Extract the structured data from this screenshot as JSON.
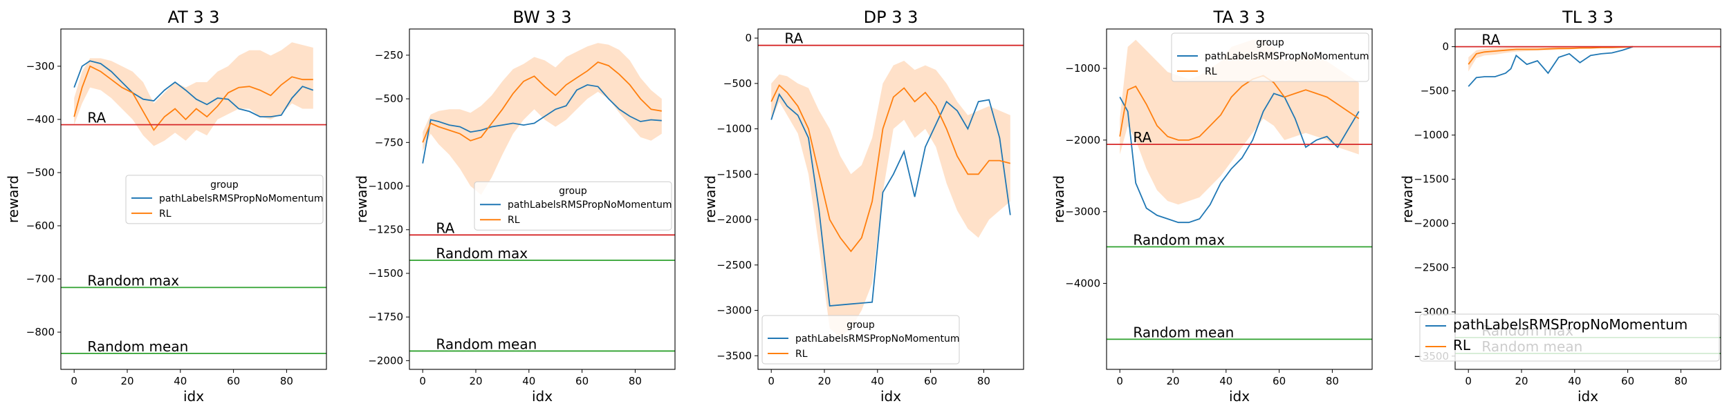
{
  "colors": {
    "blue": "#1f77b4",
    "orange": "#ff7f0e",
    "band": "#ffdcbf",
    "red": "#d62728",
    "green": "#2ca02c",
    "axis": "#000000"
  },
  "legend": {
    "title": "group",
    "entries": [
      "pathLabelsRMSPropNoMomentum",
      "RL"
    ]
  },
  "chart_data": [
    {
      "type": "line",
      "title": "AT 3 3",
      "xlabel": "idx",
      "ylabel": "reward",
      "xlim": [
        -5,
        95
      ],
      "ylim": [
        -870,
        -230
      ],
      "xticks": [
        0,
        20,
        40,
        60,
        80
      ],
      "yticks": [
        -800,
        -700,
        -600,
        -500,
        -400,
        -300
      ],
      "legend_placement": "center-right",
      "series": [
        {
          "name": "pathLabelsRMSPropNoMomentum",
          "color": "blue",
          "x": [
            0,
            3,
            6,
            10,
            14,
            18,
            22,
            26,
            30,
            34,
            38,
            42,
            46,
            50,
            54,
            58,
            62,
            66,
            70,
            74,
            78,
            82,
            86,
            90
          ],
          "y": [
            -340,
            -300,
            -290,
            -295,
            -310,
            -330,
            -350,
            -362,
            -365,
            -345,
            -330,
            -345,
            -362,
            -372,
            -360,
            -362,
            -380,
            -385,
            -395,
            -395,
            -392,
            -360,
            -338,
            -345
          ]
        },
        {
          "name": "RL",
          "color": "orange",
          "x": [
            0,
            3,
            6,
            10,
            14,
            18,
            22,
            26,
            30,
            34,
            38,
            42,
            46,
            50,
            54,
            58,
            62,
            66,
            70,
            74,
            78,
            82,
            86,
            90
          ],
          "y": [
            -395,
            -340,
            -300,
            -310,
            -325,
            -340,
            -350,
            -385,
            -420,
            -395,
            -380,
            -400,
            -380,
            -395,
            -375,
            -350,
            -340,
            -338,
            -345,
            -355,
            -335,
            -320,
            -325,
            -325
          ],
          "band_low": [
            -410,
            -370,
            -340,
            -345,
            -360,
            -380,
            -400,
            -430,
            -450,
            -440,
            -425,
            -440,
            -420,
            -430,
            -400,
            -390,
            -380,
            -380,
            -395,
            -400,
            -390,
            -370,
            -380,
            -380
          ],
          "band_high": [
            -360,
            -310,
            -285,
            -285,
            -290,
            -300,
            -310,
            -330,
            -370,
            -350,
            -330,
            -340,
            -330,
            -330,
            -310,
            -300,
            -280,
            -270,
            -270,
            -280,
            -270,
            -255,
            -260,
            -265
          ]
        }
      ],
      "hlines": [
        {
          "label": "RA",
          "y": -410,
          "color": "red"
        },
        {
          "label": "Random max",
          "y": -716,
          "color": "green"
        },
        {
          "label": "Random mean",
          "y": -840,
          "color": "green"
        }
      ]
    },
    {
      "type": "line",
      "title": "BW 3 3",
      "xlabel": "idx",
      "ylabel": "reward",
      "xlim": [
        -5,
        95
      ],
      "ylim": [
        -2050,
        -100
      ],
      "xticks": [
        0,
        20,
        40,
        60,
        80
      ],
      "yticks": [
        -2000,
        -1750,
        -1500,
        -1250,
        -1000,
        -750,
        -500,
        -250
      ],
      "legend_placement": "center-right",
      "series": [
        {
          "name": "pathLabelsRMSPropNoMomentum",
          "color": "blue",
          "x": [
            0,
            3,
            6,
            10,
            14,
            18,
            22,
            26,
            30,
            34,
            38,
            42,
            46,
            50,
            54,
            58,
            62,
            66,
            70,
            74,
            78,
            82,
            86,
            90
          ],
          "y": [
            -870,
            -620,
            -630,
            -650,
            -660,
            -690,
            -680,
            -660,
            -650,
            -640,
            -650,
            -640,
            -600,
            -560,
            -540,
            -450,
            -420,
            -430,
            -500,
            -560,
            -600,
            -630,
            -620,
            -625
          ]
        },
        {
          "name": "RL",
          "color": "orange",
          "x": [
            0,
            3,
            6,
            10,
            14,
            18,
            22,
            26,
            30,
            34,
            38,
            42,
            46,
            50,
            54,
            58,
            62,
            66,
            70,
            74,
            78,
            82,
            86,
            90
          ],
          "y": [
            -750,
            -640,
            -660,
            -680,
            -700,
            -740,
            -720,
            -640,
            -560,
            -470,
            -400,
            -370,
            -430,
            -480,
            -420,
            -380,
            -340,
            -290,
            -310,
            -360,
            -420,
            -500,
            -560,
            -570
          ],
          "band_low": [
            -800,
            -700,
            -760,
            -820,
            -900,
            -1000,
            -1050,
            -950,
            -820,
            -700,
            -620,
            -560,
            -620,
            -660,
            -620,
            -560,
            -500,
            -460,
            -500,
            -580,
            -650,
            -720,
            -740,
            -700
          ],
          "band_high": [
            -690,
            -590,
            -570,
            -560,
            -560,
            -580,
            -540,
            -480,
            -400,
            -330,
            -300,
            -260,
            -280,
            -320,
            -260,
            -230,
            -200,
            -180,
            -190,
            -220,
            -280,
            -380,
            -450,
            -500
          ]
        }
      ],
      "hlines": [
        {
          "label": "RA",
          "y": -1280,
          "color": "red"
        },
        {
          "label": "Random max",
          "y": -1425,
          "color": "green"
        },
        {
          "label": "Random mean",
          "y": -1945,
          "color": "green"
        }
      ]
    },
    {
      "type": "line",
      "title": "DP 3 3",
      "xlabel": "idx",
      "ylabel": "reward",
      "xlim": [
        -5,
        95
      ],
      "ylim": [
        -3650,
        100
      ],
      "xticks": [
        0,
        20,
        40,
        60,
        80
      ],
      "yticks": [
        -3500,
        -3000,
        -2500,
        -2000,
        -1500,
        -1000,
        -500,
        0
      ],
      "legend_placement": "bottom-left",
      "series": [
        {
          "name": "pathLabelsRMSPropNoMomentum",
          "color": "blue",
          "x": [
            0,
            3,
            6,
            10,
            14,
            18,
            22,
            26,
            30,
            34,
            38,
            42,
            46,
            50,
            54,
            58,
            62,
            66,
            70,
            74,
            78,
            82,
            86,
            90
          ],
          "y": [
            -900,
            -620,
            -750,
            -850,
            -1100,
            -1900,
            -2950,
            -2940,
            -2930,
            -2920,
            -2910,
            -1700,
            -1500,
            -1250,
            -1750,
            -1200,
            -950,
            -700,
            -800,
            -1000,
            -700,
            -680,
            -1100,
            -1950
          ]
        },
        {
          "name": "RL",
          "color": "orange",
          "x": [
            0,
            3,
            6,
            10,
            14,
            18,
            22,
            26,
            30,
            34,
            38,
            42,
            46,
            50,
            54,
            58,
            62,
            66,
            70,
            74,
            78,
            82,
            86,
            90
          ],
          "y": [
            -700,
            -520,
            -600,
            -750,
            -1000,
            -1500,
            -2000,
            -2200,
            -2350,
            -2200,
            -1800,
            -1000,
            -650,
            -550,
            -700,
            -600,
            -750,
            -1000,
            -1300,
            -1500,
            -1500,
            -1350,
            -1350,
            -1380
          ],
          "band_low": [
            -900,
            -700,
            -850,
            -1050,
            -1500,
            -2300,
            -3200,
            -3300,
            -3200,
            -3000,
            -2700,
            -1700,
            -1000,
            -900,
            -1100,
            -1000,
            -1200,
            -1600,
            -1900,
            -2100,
            -2200,
            -2000,
            -1900,
            -1800
          ],
          "band_high": [
            -500,
            -400,
            -420,
            -500,
            -550,
            -800,
            -1000,
            -1300,
            -1500,
            -1400,
            -1100,
            -500,
            -300,
            -250,
            -350,
            -300,
            -350,
            -500,
            -700,
            -850,
            -800,
            -750,
            -800,
            -850
          ]
        }
      ],
      "hlines": [
        {
          "label": "RA",
          "y": -80,
          "color": "red"
        }
      ]
    },
    {
      "type": "line",
      "title": "TA 3 3",
      "xlabel": "idx",
      "ylabel": "reward",
      "xlim": [
        -5,
        95
      ],
      "ylim": [
        -5200,
        -450
      ],
      "xticks": [
        0,
        20,
        40,
        60,
        80
      ],
      "yticks": [
        -4000,
        -3000,
        -2000,
        -1000
      ],
      "legend_placement": "top-right",
      "series": [
        {
          "name": "pathLabelsRMSPropNoMomentum",
          "color": "blue",
          "x": [
            0,
            3,
            6,
            10,
            14,
            18,
            22,
            26,
            30,
            34,
            38,
            42,
            46,
            50,
            54,
            58,
            62,
            66,
            70,
            74,
            78,
            82,
            86,
            90
          ],
          "y": [
            -1400,
            -1600,
            -2600,
            -2950,
            -3050,
            -3100,
            -3150,
            -3150,
            -3100,
            -2900,
            -2600,
            -2400,
            -2250,
            -2000,
            -1600,
            -1350,
            -1400,
            -1700,
            -2100,
            -2000,
            -1950,
            -2100,
            -1850,
            -1600
          ]
        },
        {
          "name": "RL",
          "color": "orange",
          "x": [
            0,
            3,
            6,
            10,
            14,
            18,
            22,
            26,
            30,
            34,
            38,
            42,
            46,
            50,
            54,
            58,
            62,
            66,
            70,
            74,
            78,
            82,
            86,
            90
          ],
          "y": [
            -1950,
            -1300,
            -1250,
            -1500,
            -1800,
            -1950,
            -2000,
            -2000,
            -1950,
            -1800,
            -1650,
            -1400,
            -1250,
            -1150,
            -1100,
            -1200,
            -1400,
            -1350,
            -1300,
            -1350,
            -1400,
            -1500,
            -1600,
            -1700
          ],
          "band_low": [
            -2200,
            -1800,
            -2000,
            -2400,
            -2700,
            -2850,
            -2900,
            -2850,
            -2800,
            -2650,
            -2500,
            -2300,
            -2100,
            -1900,
            -1700,
            -1800,
            -2000,
            -1950,
            -1900,
            -1950,
            -2000,
            -2100,
            -2150,
            -2200
          ],
          "band_high": [
            -1700,
            -700,
            -600,
            -750,
            -900,
            -1050,
            -1100,
            -1150,
            -1100,
            -1000,
            -900,
            -700,
            -650,
            -600,
            -600,
            -700,
            -900,
            -850,
            -800,
            -850,
            -900,
            -1000,
            -1100,
            -1200
          ]
        }
      ],
      "hlines": [
        {
          "label": "RA",
          "y": -2060,
          "color": "red"
        },
        {
          "label": "Random max",
          "y": -3490,
          "color": "green"
        },
        {
          "label": "Random mean",
          "y": -4780,
          "color": "green"
        }
      ]
    },
    {
      "type": "line",
      "title": "TL 3 3",
      "xlabel": "idx",
      "ylabel": "reward",
      "xlim": [
        -5,
        95
      ],
      "ylim": [
        -3650,
        200
      ],
      "xticks": [
        0,
        20,
        40,
        60,
        80
      ],
      "yticks": [
        -3500,
        -3000,
        -2500,
        -2000,
        -1500,
        -1000,
        -500,
        0
      ],
      "legend_placement": "bottom-right",
      "series": [
        {
          "name": "pathLabelsRMSPropNoMomentum",
          "color": "blue",
          "x": [
            0,
            3,
            6,
            10,
            14,
            16,
            18,
            22,
            26,
            30,
            34,
            38,
            42,
            46,
            50,
            54,
            58,
            62
          ],
          "y": [
            -450,
            -350,
            -340,
            -340,
            -300,
            -250,
            -100,
            -200,
            -160,
            -300,
            -120,
            -80,
            -180,
            -100,
            -80,
            -70,
            -40,
            0
          ]
        },
        {
          "name": "RL",
          "color": "orange",
          "x": [
            0,
            3,
            6,
            10,
            14,
            18,
            22,
            26,
            30,
            34,
            38,
            42,
            46,
            50,
            54,
            58,
            62
          ],
          "y": [
            -200,
            -80,
            -60,
            -50,
            -40,
            -30,
            -30,
            -30,
            -25,
            -20,
            -20,
            -15,
            -15,
            -10,
            -10,
            -5,
            0
          ],
          "band_low": [
            -280,
            -130,
            -100,
            -90,
            -70,
            -55,
            -50,
            -45,
            -40,
            -35,
            -30,
            -25,
            -22,
            -18,
            -14,
            -10,
            -5
          ],
          "band_high": [
            -120,
            -40,
            -25,
            -15,
            -10,
            -8,
            -8,
            -8,
            -8,
            -6,
            -6,
            -5,
            -5,
            -4,
            -3,
            -2,
            0
          ]
        }
      ],
      "hlines": [
        {
          "label": "RA",
          "y": 0,
          "color": "red"
        },
        {
          "label": "Random max",
          "y": -3290,
          "color": "green"
        },
        {
          "label": "Random mean",
          "y": -3470,
          "color": "green"
        }
      ]
    }
  ]
}
